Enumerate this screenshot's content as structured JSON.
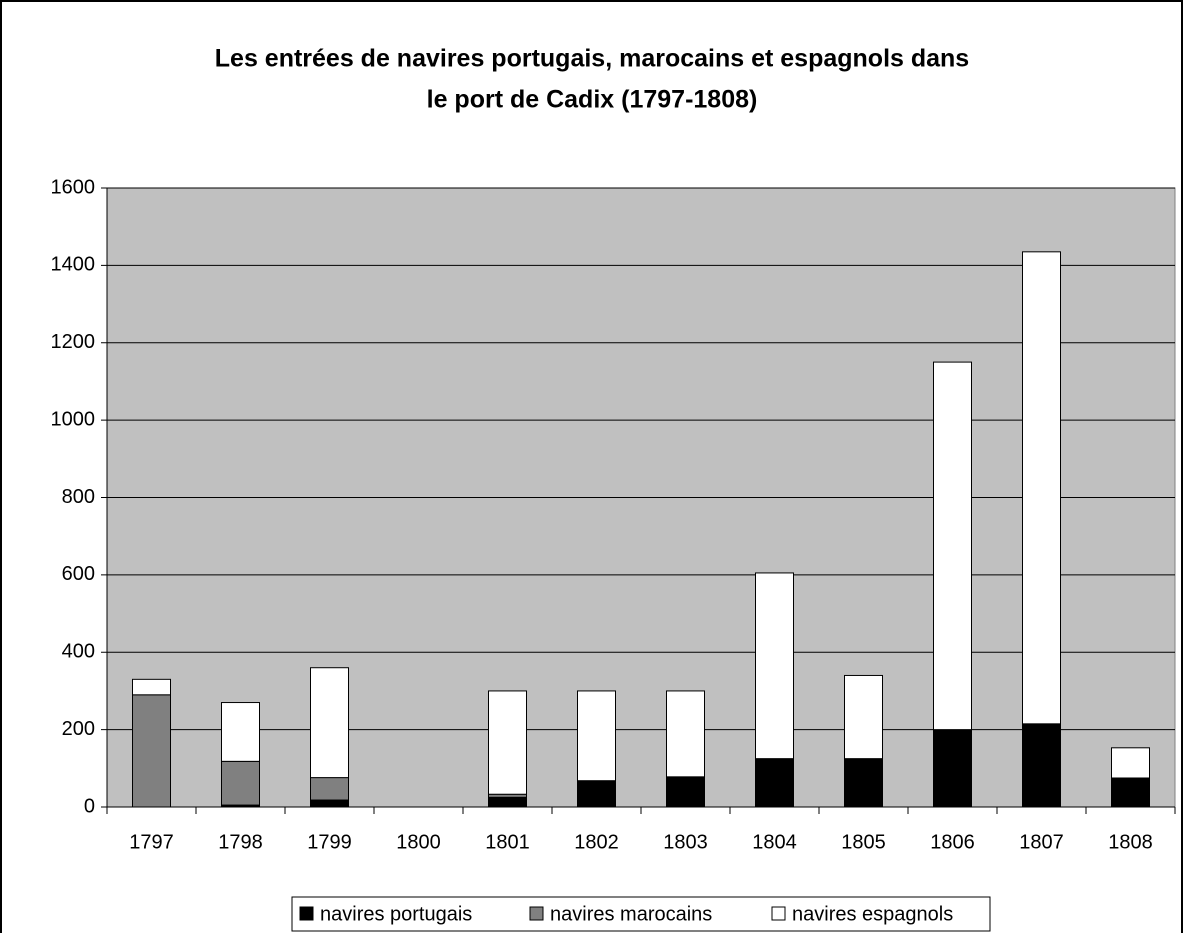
{
  "chart_data": {
    "type": "stacked_bar",
    "title": [
      "Les entrées de navires portugais, marocains et espagnols dans",
      "le port de Cadix (1797-1808)"
    ],
    "categories": [
      "1797",
      "1798",
      "1799",
      "1800",
      "1801",
      "1802",
      "1803",
      "1804",
      "1805",
      "1806",
      "1807",
      "1808"
    ],
    "series": [
      {
        "name": "navires portugais",
        "color": "#000000",
        "values": [
          0,
          5,
          18,
          0,
          25,
          68,
          78,
          125,
          125,
          200,
          215,
          75
        ]
      },
      {
        "name": "navires marocains",
        "color": "#808080",
        "values": [
          290,
          113,
          58,
          0,
          8,
          0,
          0,
          0,
          0,
          0,
          0,
          0
        ]
      },
      {
        "name": "navires espagnols",
        "color": "#ffffff",
        "values": [
          40,
          152,
          284,
          0,
          267,
          232,
          222,
          480,
          215,
          950,
          1220,
          78
        ]
      }
    ],
    "ylim": [
      0,
      1600
    ],
    "yticks": [
      0,
      200,
      400,
      600,
      800,
      1000,
      1200,
      1400,
      1600
    ],
    "grid": true,
    "legend": "bottom"
  }
}
